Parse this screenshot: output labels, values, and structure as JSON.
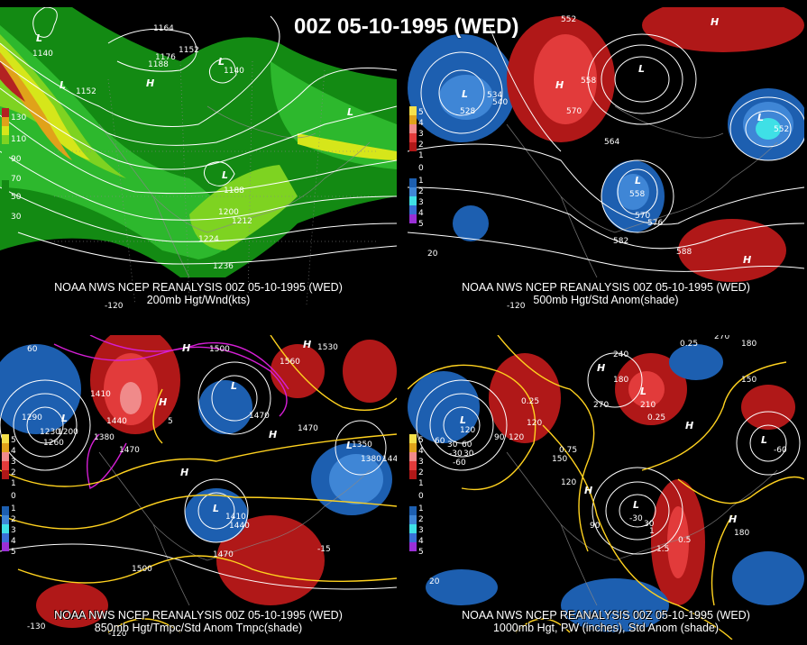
{
  "header": {
    "title": "00Z 05-10-1995 (WED)"
  },
  "panels": [
    {
      "caption_top": "NOAA NWS NCEP REANALYSIS 00Z 05-10-1995 (WED)",
      "caption_bottom": "200mb Hgt/Wnd(kts)",
      "legend": [
        "130",
        "110",
        "90",
        "70",
        "50",
        "30"
      ],
      "contour_labels": [
        "1140",
        "1152",
        "1164",
        "1152",
        "1176",
        "1188",
        "1140",
        "1188",
        "1200",
        "1212",
        "1224",
        "1236"
      ],
      "centers": [
        "L",
        "L",
        "H",
        "L",
        "L",
        "L"
      ],
      "lon_labels": [
        "-120"
      ]
    },
    {
      "caption_top": "NOAA NWS NCEP REANALYSIS 00Z 05-10-1995 (WED)",
      "caption_bottom": "500mb Hgt/Std Anom(shade)",
      "legend": [
        "5",
        "4",
        "3",
        "2",
        "1",
        "0",
        "1",
        "2",
        "3",
        "4",
        "5"
      ],
      "contour_labels": [
        "552",
        "558",
        "570",
        "534",
        "540",
        "528",
        "564",
        "558",
        "570",
        "576",
        "582",
        "588",
        "552"
      ],
      "centers": [
        "L",
        "H",
        "L",
        "L",
        "L",
        "H",
        "H"
      ],
      "lon_labels": [
        "-120",
        "20"
      ]
    },
    {
      "caption_top": "NOAA NWS NCEP REANALYSIS 00Z 05-10-1995 (WED)",
      "caption_bottom": "850mb Hgt/Tmpc/Std Anom Tmpc(shade)",
      "legend": [
        "5",
        "4",
        "3",
        "2",
        "1",
        "0",
        "1",
        "2",
        "3",
        "4",
        "5"
      ],
      "contour_labels": [
        "1500",
        "1530",
        "1560",
        "1410",
        "1440",
        "1470",
        "1290",
        "1230",
        "1200",
        "1260",
        "1380",
        "1470",
        "1410",
        "1440",
        "1470",
        "1350",
        "1380",
        "1440",
        "1470",
        "1500",
        "-15",
        "5"
      ],
      "centers": [
        "H",
        "L",
        "H",
        "L",
        "H",
        "H",
        "L",
        "H",
        "L"
      ],
      "lon_labels": [
        "-130",
        "-120",
        "60"
      ]
    },
    {
      "caption_top": "NOAA NWS NCEP REANALYSIS 00Z 05-10-1995 (WED)",
      "caption_bottom": "1000mb Hgt, PW (inches), Std Anom (shade)",
      "legend": [
        "5",
        "4",
        "3",
        "2",
        "1",
        "0",
        "1",
        "2",
        "3",
        "4",
        "5"
      ],
      "contour_labels": [
        "0.25",
        "270",
        "180",
        "240",
        "150",
        "0.25",
        "180",
        "210",
        "270",
        "0.25",
        "120",
        "90",
        "120",
        "0.75",
        "150",
        "30",
        "60",
        "-30",
        "120",
        "90",
        "30",
        "-30",
        "-60",
        "180",
        "0.5",
        "1.5",
        "1",
        "60",
        "120",
        "30",
        "-60"
      ],
      "centers": [
        "H",
        "L",
        "L",
        "L",
        "L",
        "H",
        "H",
        "H"
      ],
      "lon_labels": [
        "20"
      ]
    }
  ],
  "colors": {
    "wind_dark_green": "#138a13",
    "wind_green": "#2db82d",
    "wind_light_green": "#7ed321",
    "wind_yellow": "#d6e61a",
    "wind_orange": "#e0a21a",
    "wind_red": "#b32222",
    "anom_pos_dark": "#b01818",
    "anom_pos": "#e23b3b",
    "anom_pos_light": "#f08a8a",
    "anom_neg_dark": "#1d5fb0",
    "anom_neg": "#3f86d6",
    "anom_neg_light": "#3fe0e6",
    "tmpc_contour": "#ffd21f",
    "tmpc_cold_contour": "#d51fd5"
  }
}
